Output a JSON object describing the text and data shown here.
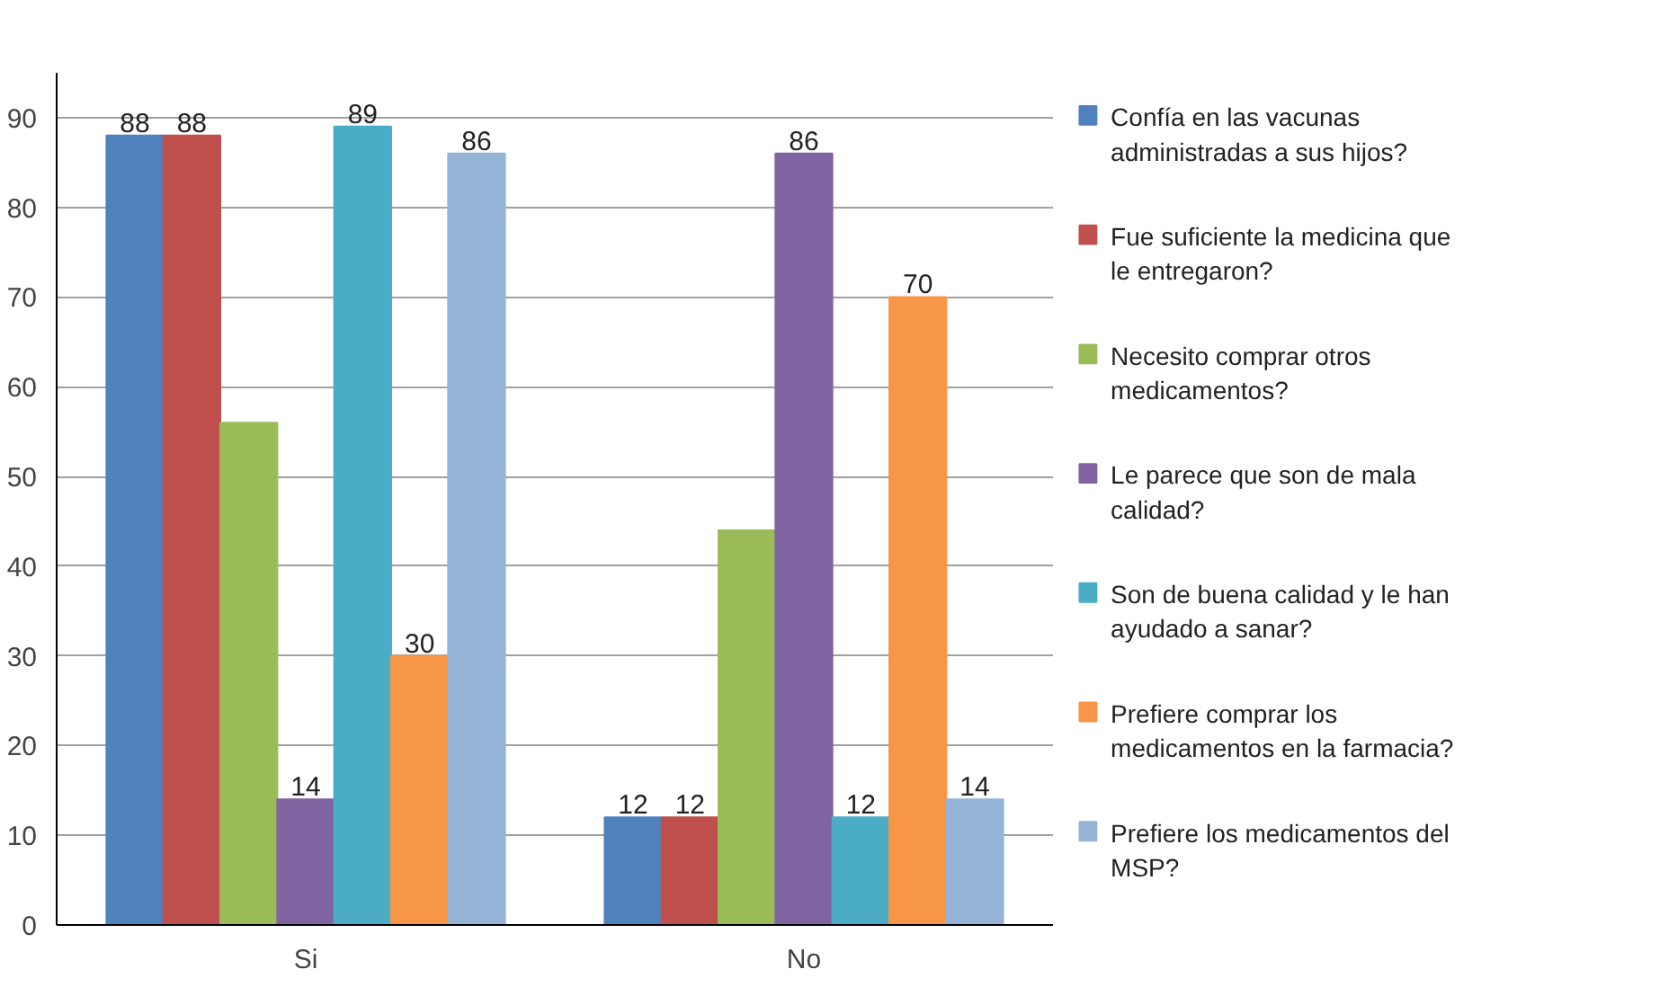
{
  "chart_data": {
    "type": "bar",
    "categories": [
      "Si",
      "No"
    ],
    "ylim": [
      0,
      95
    ],
    "yticks": [
      0,
      10,
      20,
      30,
      40,
      50,
      60,
      70,
      80,
      90
    ],
    "grid": "y",
    "legend": "right",
    "series": [
      {
        "name": "Confía en las vacunas administradas a sus hijos?",
        "color": "#4f81bd",
        "values": [
          88,
          12
        ],
        "value_labels": [
          "88",
          "12"
        ]
      },
      {
        "name": "Fue suficiente la medicina que le entregaron?",
        "color": "#c0504d",
        "values": [
          88,
          12
        ],
        "value_labels": [
          "88",
          "12"
        ]
      },
      {
        "name": "Necesito comprar otros medicamentos?",
        "color": "#9bbb59",
        "values": [
          56,
          44
        ],
        "value_labels": [
          null,
          null
        ]
      },
      {
        "name": "Le parece que son de mala calidad?",
        "color": "#8064a2",
        "values": [
          14,
          86
        ],
        "value_labels": [
          "14",
          "86"
        ]
      },
      {
        "name": "Son de buena calidad y le han ayudado a sanar?",
        "color": "#4bacc6",
        "values": [
          89,
          12
        ],
        "value_labels": [
          "89",
          "12"
        ]
      },
      {
        "name": "Prefiere comprar los medicamentos en la farmacia?",
        "color": "#f79646",
        "values": [
          30,
          70
        ],
        "value_labels": [
          "30",
          "70"
        ]
      },
      {
        "name": "Prefiere los medicamentos del MSP?",
        "color": "#95b3d7",
        "values": [
          86,
          14
        ],
        "value_labels": [
          "86",
          "14"
        ]
      }
    ]
  }
}
